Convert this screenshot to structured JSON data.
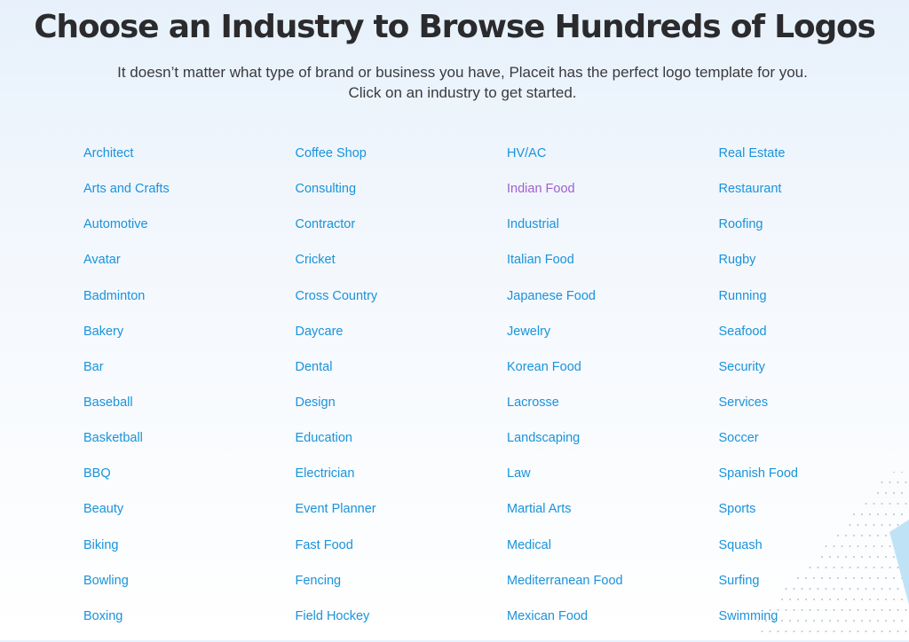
{
  "header": {
    "title": "Choose an Industry to Browse Hundreds of Logos",
    "subtitle_line1": "It doesn’t matter what type of brand or business you have, Placeit has the perfect logo template for you.",
    "subtitle_line2": "Click on an industry to get started."
  },
  "colors": {
    "link": "#1a93da",
    "visited_link": "#a060d0",
    "title": "#2b2b2e"
  },
  "industries": {
    "col1": [
      "Architect",
      "Arts and Crafts",
      "Automotive",
      "Avatar",
      "Badminton",
      "Bakery",
      "Bar",
      "Baseball",
      "Basketball",
      "BBQ",
      "Beauty",
      "Biking",
      "Bowling",
      "Boxing"
    ],
    "col2": [
      "Coffee Shop",
      "Consulting",
      "Contractor",
      "Cricket",
      "Cross Country",
      "Daycare",
      "Dental",
      "Design",
      "Education",
      "Electrician",
      "Event Planner",
      "Fast Food",
      "Fencing",
      "Field Hockey"
    ],
    "col3": [
      "HV/AC",
      "Indian Food",
      "Industrial",
      "Italian Food",
      "Japanese Food",
      "Jewelry",
      "Korean Food",
      "Lacrosse",
      "Landscaping",
      "Law",
      "Martial Arts",
      "Medical",
      "Mediterranean Food",
      "Mexican Food"
    ],
    "col4": [
      "Real Estate",
      "Restaurant",
      "Roofing",
      "Rugby",
      "Running",
      "Seafood",
      "Security",
      "Services",
      "Soccer",
      "Spanish Food",
      "Sports",
      "Squash",
      "Surfing",
      "Swimming"
    ]
  },
  "visited_industry": "Indian Food"
}
